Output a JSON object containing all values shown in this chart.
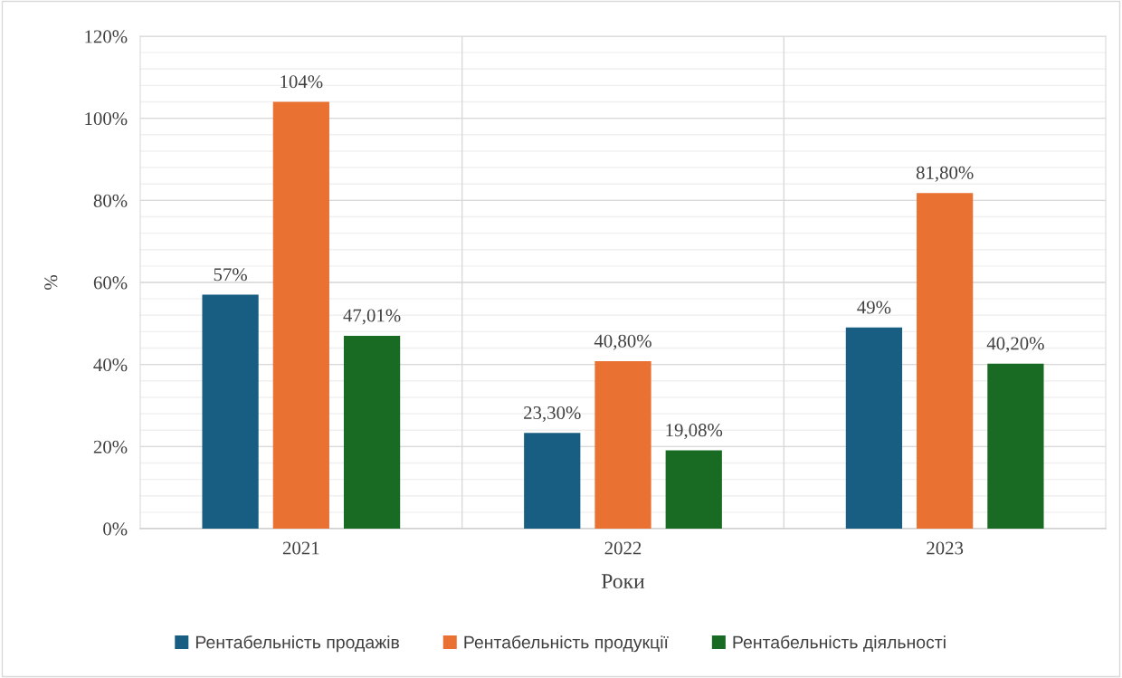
{
  "chart_data": {
    "type": "bar",
    "categories": [
      "2021",
      "2022",
      "2023"
    ],
    "xlabel": "Роки",
    "ylabel": "%",
    "series": [
      {
        "name": "Рентабельність продажів",
        "color": "#175e82",
        "values": [
          57,
          23.3,
          49
        ],
        "value_labels": [
          "57%",
          "23,30%",
          "49%"
        ]
      },
      {
        "name": "Рентабельність продукції",
        "color": "#e97132",
        "values": [
          104,
          40.8,
          81.8
        ],
        "value_labels": [
          "104%",
          "40,80%",
          "81,80%"
        ]
      },
      {
        "name": "Рентабельність діяльності",
        "color": "#196b24",
        "values": [
          47.01,
          19.08,
          40.2
        ],
        "value_labels": [
          "47,01%",
          "19,08%",
          "40,20%"
        ]
      }
    ],
    "ylim": [
      0,
      120
    ],
    "yticks": [
      {
        "value": 0,
        "label": "0%"
      },
      {
        "value": 20,
        "label": "20%"
      },
      {
        "value": 40,
        "label": "40%"
      },
      {
        "value": 60,
        "label": "60%"
      },
      {
        "value": 80,
        "label": "80%"
      },
      {
        "value": 100,
        "label": "100%"
      },
      {
        "value": 120,
        "label": "120%"
      }
    ],
    "grid": true,
    "legend": "bottom"
  }
}
